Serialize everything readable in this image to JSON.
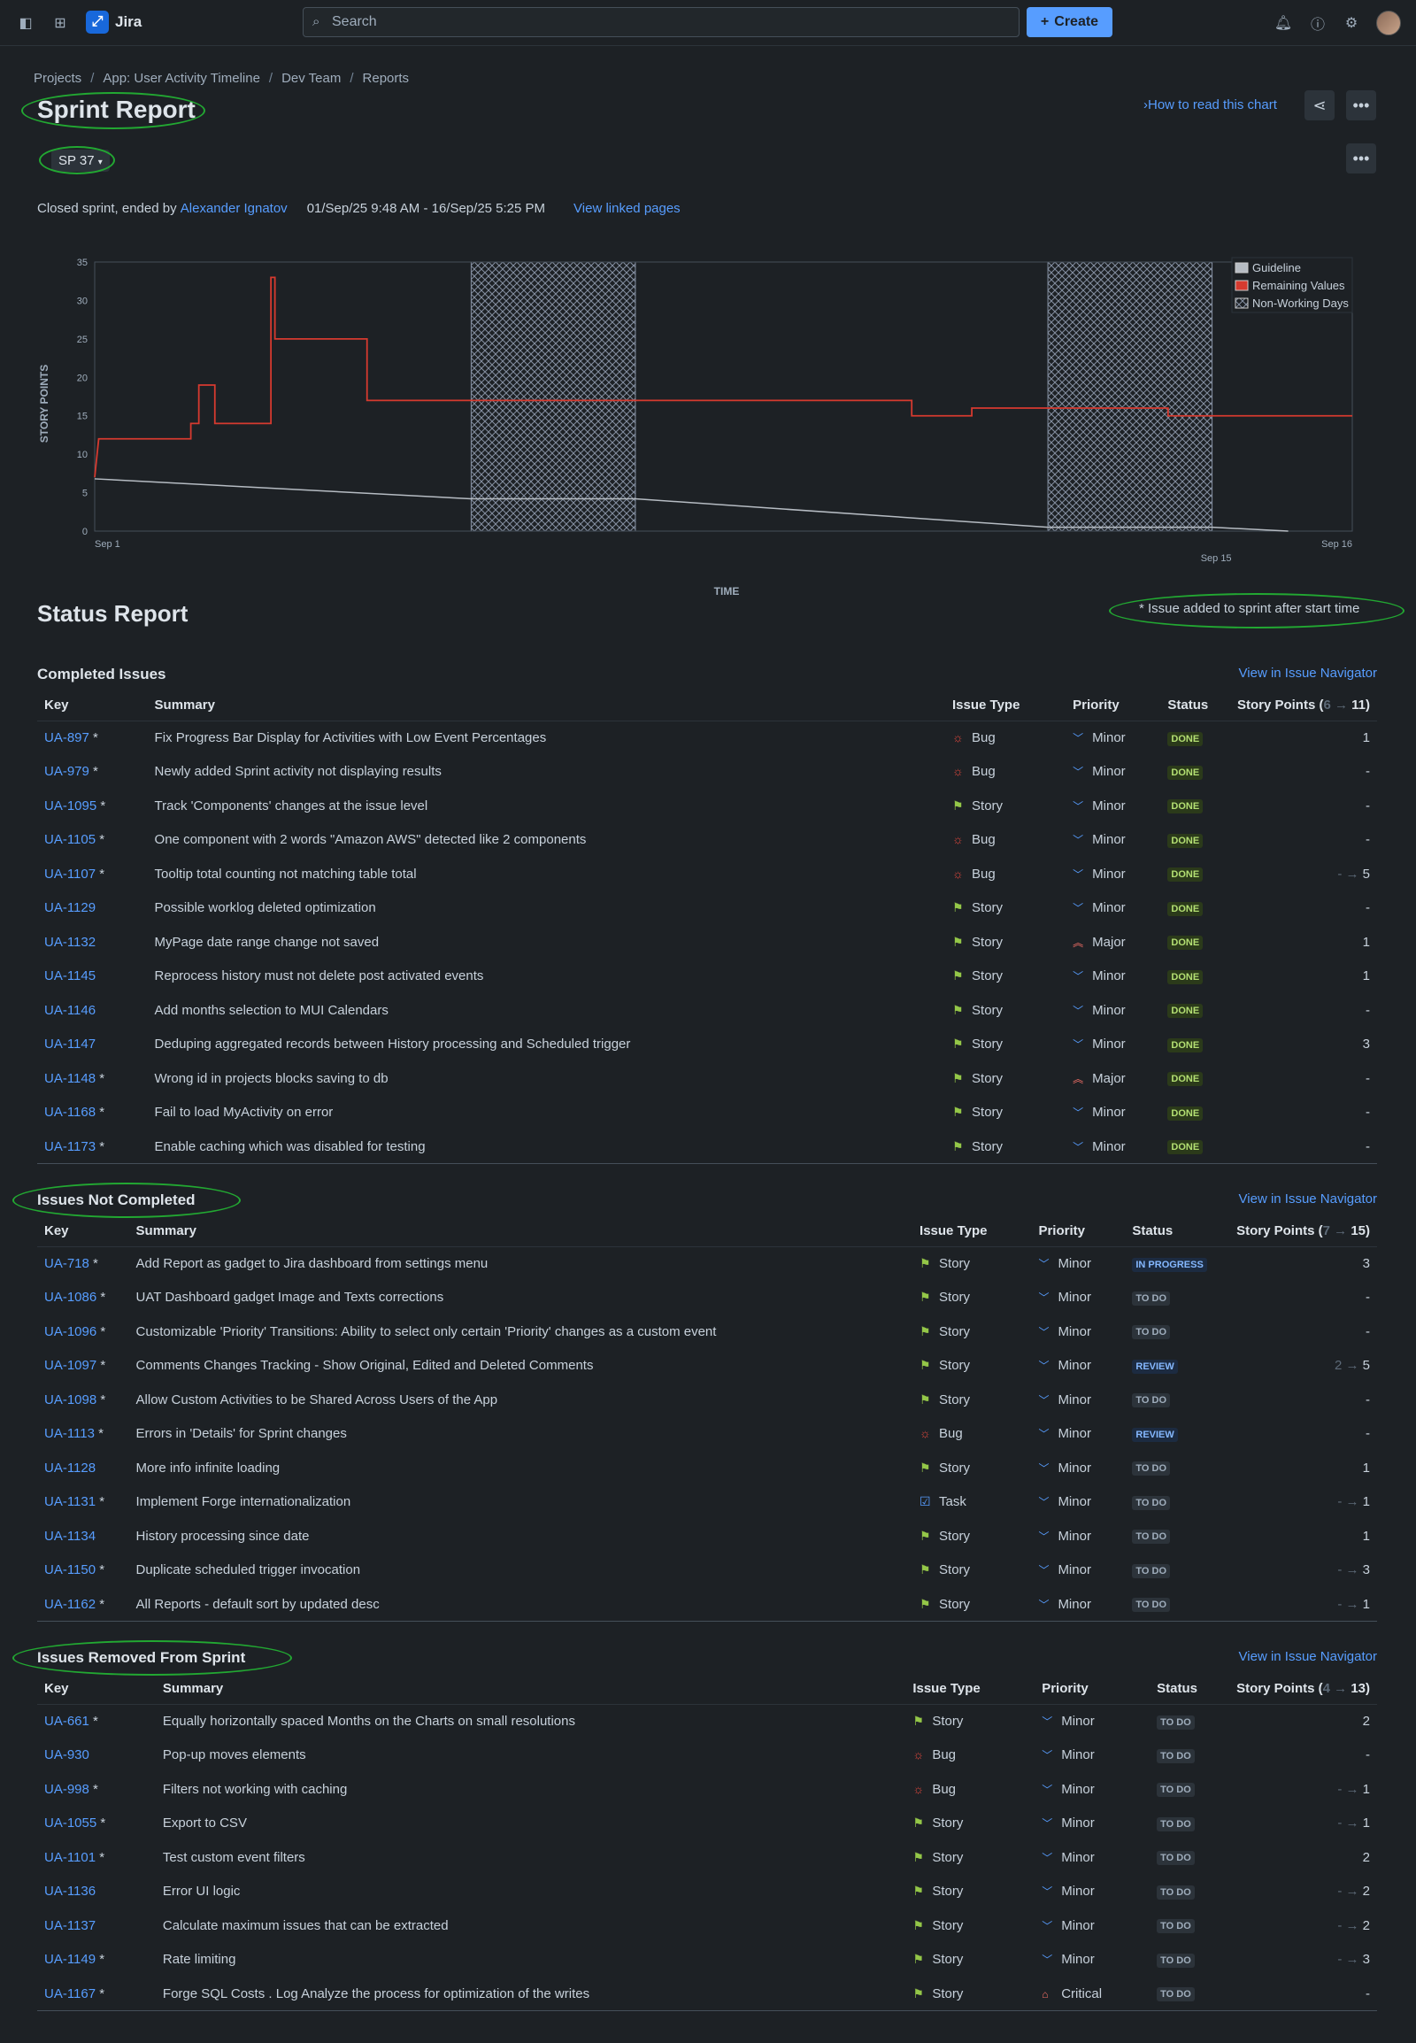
{
  "topbar": {
    "product": "Jira",
    "logo_glyph": "⤢",
    "search_placeholder": "Search",
    "create_label": "Create"
  },
  "breadcrumb": [
    "Projects",
    "App: User Activity Timeline",
    "Dev Team",
    "Reports"
  ],
  "page": {
    "title": "Sprint Report",
    "how_to_read": "How to read this chart",
    "sprint_selected": "SP 37",
    "sprint_info": {
      "prefix": "Closed sprint, ended by ",
      "user": "Alexander Ignatov",
      "dates": "01/Sep/25 9:48 AM - 16/Sep/25 5:25 PM",
      "linked": "View linked pages"
    }
  },
  "chart_data": {
    "type": "line",
    "ylabel": "STORY POINTS",
    "xlabel": "TIME",
    "ylim": [
      0,
      35
    ],
    "yticks": [
      0,
      5,
      10,
      15,
      20,
      25,
      30,
      35
    ],
    "xtick_labels": [
      "Sep 1",
      "Sep 15",
      "Sep 16"
    ],
    "x_domain_days": [
      1,
      16.7
    ],
    "legend": [
      "Guideline",
      "Remaining Values",
      "Non-Working Days"
    ],
    "legend_position": "top-right",
    "grid": false,
    "colors": {
      "remaining": "#d63a2f",
      "guideline": "#b6bcc3",
      "non_working": "#8590a2"
    },
    "non_working_days": [
      [
        5.7,
        7.75
      ],
      [
        12.9,
        14.95
      ]
    ],
    "guideline": [
      [
        1,
        6.8
      ],
      [
        5.7,
        4.2
      ],
      [
        7.75,
        4.2
      ],
      [
        12.9,
        0.5
      ],
      [
        14.95,
        0.5
      ],
      [
        15.9,
        0
      ]
    ],
    "remaining_values": [
      [
        1,
        7
      ],
      [
        1.05,
        12
      ],
      [
        2.2,
        12
      ],
      [
        2.2,
        14
      ],
      [
        2.3,
        14
      ],
      [
        2.3,
        19
      ],
      [
        2.5,
        19
      ],
      [
        2.5,
        14
      ],
      [
        3.2,
        14
      ],
      [
        3.2,
        33
      ],
      [
        3.25,
        33
      ],
      [
        3.25,
        25
      ],
      [
        4.4,
        25
      ],
      [
        4.4,
        17
      ],
      [
        11.2,
        17
      ],
      [
        11.2,
        15
      ],
      [
        11.95,
        15
      ],
      [
        11.95,
        16
      ],
      [
        14.4,
        16
      ],
      [
        14.4,
        15
      ],
      [
        16.7,
        15
      ]
    ]
  },
  "status_report": {
    "title": "Status Report",
    "added_note": "* Issue added to sprint after start time"
  },
  "columns": {
    "key": "Key",
    "summary": "Summary",
    "type": "Issue Type",
    "priority": "Priority",
    "status": "Status"
  },
  "completed": {
    "title": "Completed Issues",
    "nav": "View in Issue Navigator",
    "sp_header": "Story Points (",
    "sp_from": "6",
    "sp_arrow": " → ",
    "sp_to": "11)",
    "rows": [
      {
        "key": "UA-897",
        "star": " *",
        "summary": "Fix Progress Bar Display for Activities with Low Event Percentages",
        "type": "Bug",
        "priority": "Minor",
        "status": "DONE",
        "sp_old": "",
        "sp": "1"
      },
      {
        "key": "UA-979",
        "star": " *",
        "summary": "Newly added Sprint activity not displaying results",
        "type": "Bug",
        "priority": "Minor",
        "status": "DONE",
        "sp_old": "",
        "sp": "-"
      },
      {
        "key": "UA-1095",
        "star": " *",
        "summary": "Track 'Components' changes at the issue level",
        "type": "Story",
        "priority": "Minor",
        "status": "DONE",
        "sp_old": "",
        "sp": "-"
      },
      {
        "key": "UA-1105",
        "star": " *",
        "summary": "One component with 2 words \"Amazon AWS\" detected like 2 components",
        "type": "Bug",
        "priority": "Minor",
        "status": "DONE",
        "sp_old": "",
        "sp": "-"
      },
      {
        "key": "UA-1107",
        "star": " *",
        "summary": "Tooltip total counting not matching table total",
        "type": "Bug",
        "priority": "Minor",
        "status": "DONE",
        "sp_old": "- → ",
        "sp": "5"
      },
      {
        "key": "UA-1129",
        "star": "",
        "summary": "Possible worklog deleted optimization",
        "type": "Story",
        "priority": "Minor",
        "status": "DONE",
        "sp_old": "",
        "sp": "-"
      },
      {
        "key": "UA-1132",
        "star": "",
        "summary": "MyPage date range change not saved",
        "type": "Story",
        "priority": "Major",
        "status": "DONE",
        "sp_old": "",
        "sp": "1"
      },
      {
        "key": "UA-1145",
        "star": "",
        "summary": "Reprocess history must not delete post activated events",
        "type": "Story",
        "priority": "Minor",
        "status": "DONE",
        "sp_old": "",
        "sp": "1"
      },
      {
        "key": "UA-1146",
        "star": "",
        "summary": "Add months selection to MUI Calendars",
        "type": "Story",
        "priority": "Minor",
        "status": "DONE",
        "sp_old": "",
        "sp": "-"
      },
      {
        "key": "UA-1147",
        "star": "",
        "summary": "Deduping aggregated records between History processing and Scheduled trigger",
        "type": "Story",
        "priority": "Minor",
        "status": "DONE",
        "sp_old": "",
        "sp": "3"
      },
      {
        "key": "UA-1148",
        "star": " *",
        "summary": "Wrong id in projects blocks saving to db",
        "type": "Story",
        "priority": "Major",
        "status": "DONE",
        "sp_old": "",
        "sp": "-"
      },
      {
        "key": "UA-1168",
        "star": " *",
        "summary": "Fail to load MyActivity on error",
        "type": "Story",
        "priority": "Minor",
        "status": "DONE",
        "sp_old": "",
        "sp": "-"
      },
      {
        "key": "UA-1173",
        "star": " *",
        "summary": "Enable caching which was disabled for testing",
        "type": "Story",
        "priority": "Minor",
        "status": "DONE",
        "sp_old": "",
        "sp": "-"
      }
    ]
  },
  "not_completed": {
    "title": "Issues Not Completed",
    "nav": "View in Issue Navigator",
    "sp_header": "Story Points (",
    "sp_from": "7",
    "sp_arrow": " → ",
    "sp_to": "15)",
    "rows": [
      {
        "key": "UA-718",
        "star": " *",
        "summary": "Add Report as gadget to Jira dashboard from settings menu",
        "type": "Story",
        "priority": "Minor",
        "status": "IN PROGRESS",
        "sp_old": "",
        "sp": "3"
      },
      {
        "key": "UA-1086",
        "star": " *",
        "summary": "UAT Dashboard gadget Image and Texts corrections",
        "type": "Story",
        "priority": "Minor",
        "status": "TO DO",
        "sp_old": "",
        "sp": "-"
      },
      {
        "key": "UA-1096",
        "star": " *",
        "summary": "Customizable 'Priority' Transitions: Ability to select only certain 'Priority' changes as a custom event",
        "type": "Story",
        "priority": "Minor",
        "status": "TO DO",
        "sp_old": "",
        "sp": "-"
      },
      {
        "key": "UA-1097",
        "star": " *",
        "summary": "Comments Changes Tracking - Show Original, Edited and Deleted Comments",
        "type": "Story",
        "priority": "Minor",
        "status": "REVIEW",
        "sp_old": "2 → ",
        "sp": "5"
      },
      {
        "key": "UA-1098",
        "star": " *",
        "summary": "Allow Custom Activities to be Shared Across Users of the App",
        "type": "Story",
        "priority": "Minor",
        "status": "TO DO",
        "sp_old": "",
        "sp": "-"
      },
      {
        "key": "UA-1113",
        "star": " *",
        "summary": "Errors in 'Details' for Sprint changes",
        "type": "Bug",
        "priority": "Minor",
        "status": "REVIEW",
        "sp_old": "",
        "sp": "-"
      },
      {
        "key": "UA-1128",
        "star": "",
        "summary": "More info infinite loading",
        "type": "Story",
        "priority": "Minor",
        "status": "TO DO",
        "sp_old": "",
        "sp": "1"
      },
      {
        "key": "UA-1131",
        "star": " *",
        "summary": "Implement Forge internationalization",
        "type": "Task",
        "priority": "Minor",
        "status": "TO DO",
        "sp_old": "- → ",
        "sp": "1"
      },
      {
        "key": "UA-1134",
        "star": "",
        "summary": "History processing since date",
        "type": "Story",
        "priority": "Minor",
        "status": "TO DO",
        "sp_old": "",
        "sp": "1"
      },
      {
        "key": "UA-1150",
        "star": " *",
        "summary": "Duplicate scheduled trigger invocation",
        "type": "Story",
        "priority": "Minor",
        "status": "TO DO",
        "sp_old": "- → ",
        "sp": "3"
      },
      {
        "key": "UA-1162",
        "star": " *",
        "summary": "All Reports - default sort by updated desc",
        "type": "Story",
        "priority": "Minor",
        "status": "TO DO",
        "sp_old": "- → ",
        "sp": "1"
      }
    ]
  },
  "removed": {
    "title": "Issues Removed From Sprint",
    "nav": "View in Issue Navigator",
    "sp_header": "Story Points (",
    "sp_from": "4",
    "sp_arrow": " → ",
    "sp_to": "13)",
    "rows": [
      {
        "key": "UA-661",
        "star": " *",
        "summary": "Equally horizontally spaced Months on the Charts on small resolutions",
        "type": "Story",
        "priority": "Minor",
        "status": "TO DO",
        "sp_old": "",
        "sp": "2"
      },
      {
        "key": "UA-930",
        "star": "",
        "summary": "Pop-up moves elements",
        "type": "Bug",
        "priority": "Minor",
        "status": "TO DO",
        "sp_old": "",
        "sp": "-"
      },
      {
        "key": "UA-998",
        "star": " *",
        "summary": "Filters not working with caching",
        "type": "Bug",
        "priority": "Minor",
        "status": "TO DO",
        "sp_old": "- → ",
        "sp": "1"
      },
      {
        "key": "UA-1055",
        "star": " *",
        "summary": "Export to CSV",
        "type": "Story",
        "priority": "Minor",
        "status": "TO DO",
        "sp_old": "- → ",
        "sp": "1"
      },
      {
        "key": "UA-1101",
        "star": " *",
        "summary": "Test custom event filters",
        "type": "Story",
        "priority": "Minor",
        "status": "TO DO",
        "sp_old": "",
        "sp": "2"
      },
      {
        "key": "UA-1136",
        "star": "",
        "summary": "Error UI logic",
        "type": "Story",
        "priority": "Minor",
        "status": "TO DO",
        "sp_old": "- → ",
        "sp": "2"
      },
      {
        "key": "UA-1137",
        "star": "",
        "summary": "Calculate maximum issues that can be extracted",
        "type": "Story",
        "priority": "Minor",
        "status": "TO DO",
        "sp_old": "- → ",
        "sp": "2"
      },
      {
        "key": "UA-1149",
        "star": " *",
        "summary": "Rate limiting",
        "type": "Story",
        "priority": "Minor",
        "status": "TO DO",
        "sp_old": "- → ",
        "sp": "3"
      },
      {
        "key": "UA-1167",
        "star": " *",
        "summary": "Forge SQL Costs . Log Analyze the process for optimization of the writes",
        "type": "Story",
        "priority": "Critical",
        "status": "TO DO",
        "sp_old": "",
        "sp": "-"
      }
    ]
  }
}
